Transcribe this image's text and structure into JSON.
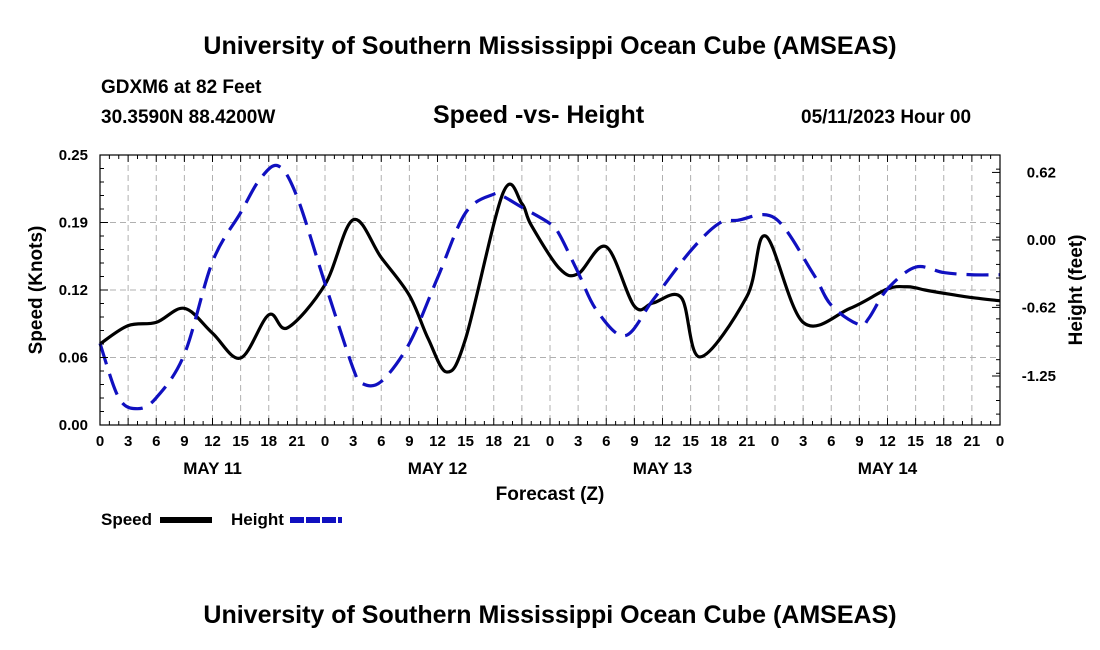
{
  "header": {
    "title": "University of Southern Mississippi Ocean Cube (AMSEAS)",
    "station": "GDXM6 at 82 Feet",
    "coords": "30.3590N  88.4200W",
    "chart_title": "Speed -vs- Height",
    "run": "05/11/2023 Hour 00"
  },
  "footer": {
    "title": "University of Southern Mississippi Ocean Cube (AMSEAS)"
  },
  "legend": [
    {
      "label": "Speed",
      "color": "#000000",
      "style": "solid"
    },
    {
      "label": "Height",
      "color": "#1010c0",
      "style": "dashed"
    }
  ],
  "chart_data": {
    "type": "line",
    "title": "Speed -vs- Height",
    "xlabel": "Forecast (Z)",
    "ylabel": "Speed (Knots)",
    "y2label": "Height (feet)",
    "x_unit": "hours",
    "xlim": [
      0,
      96
    ],
    "ylim": [
      0,
      0.25
    ],
    "y2lim": [
      -1.7,
      0.78
    ],
    "yticks": [
      "0.00",
      "0.06",
      "0.12",
      "0.19",
      "0.25"
    ],
    "y2ticks": [
      "-1.25",
      "-0.62",
      "0.00",
      "0.62"
    ],
    "x_tick_labels": [
      "0",
      "3",
      "6",
      "9",
      "12",
      "15",
      "18",
      "21",
      "0",
      "3",
      "6",
      "9",
      "12",
      "15",
      "18",
      "21",
      "0",
      "3",
      "6",
      "9",
      "12",
      "15",
      "18",
      "21",
      "0",
      "3",
      "6",
      "9",
      "12",
      "15",
      "18",
      "21",
      "0"
    ],
    "day_labels": [
      {
        "label": "MAY 11",
        "hour": 12
      },
      {
        "label": "MAY 12",
        "hour": 36
      },
      {
        "label": "MAY 13",
        "hour": 60
      },
      {
        "label": "MAY 14",
        "hour": 84
      }
    ],
    "grid": true,
    "series": [
      {
        "name": "Speed",
        "axis": "left",
        "color": "#000000",
        "x": [
          0,
          3,
          6,
          9,
          12,
          15,
          18,
          20,
          24,
          27,
          30,
          33,
          35,
          37,
          39,
          43,
          45,
          46,
          49,
          51,
          54,
          57,
          59,
          62,
          64,
          69,
          71,
          75,
          80,
          84,
          86,
          87,
          88,
          90,
          93,
          96
        ],
        "values": [
          0.075,
          0.092,
          0.095,
          0.108,
          0.085,
          0.062,
          0.102,
          0.09,
          0.13,
          0.19,
          0.155,
          0.12,
          0.08,
          0.049,
          0.08,
          0.215,
          0.205,
          0.185,
          0.145,
          0.14,
          0.165,
          0.11,
          0.113,
          0.118,
          0.063,
          0.119,
          0.175,
          0.095,
          0.108,
          0.126,
          0.128,
          0.127,
          0.125,
          0.122,
          0.118,
          0.115
        ]
      },
      {
        "name": "Height",
        "axis": "right",
        "color": "#1010c0",
        "x": [
          0,
          2,
          4,
          6,
          9,
          12,
          15,
          17,
          19,
          21,
          24,
          27,
          28,
          30,
          33,
          36,
          39,
          42,
          43,
          45,
          48,
          49,
          51,
          53,
          56,
          59,
          63,
          66,
          68,
          72,
          76,
          78,
          81,
          82,
          84,
          87,
          90,
          93,
          96
        ],
        "values": [
          -0.95,
          -1.45,
          -1.55,
          -1.45,
          -1.05,
          -0.2,
          0.25,
          0.55,
          0.68,
          0.4,
          -0.4,
          -1.18,
          -1.32,
          -1.3,
          -0.95,
          -0.35,
          0.25,
          0.42,
          0.4,
          0.3,
          0.15,
          0.05,
          -0.3,
          -0.65,
          -0.88,
          -0.55,
          -0.1,
          0.15,
          0.18,
          0.2,
          -0.3,
          -0.6,
          -0.78,
          -0.72,
          -0.45,
          -0.25,
          -0.3,
          -0.32,
          -0.32
        ]
      }
    ]
  }
}
